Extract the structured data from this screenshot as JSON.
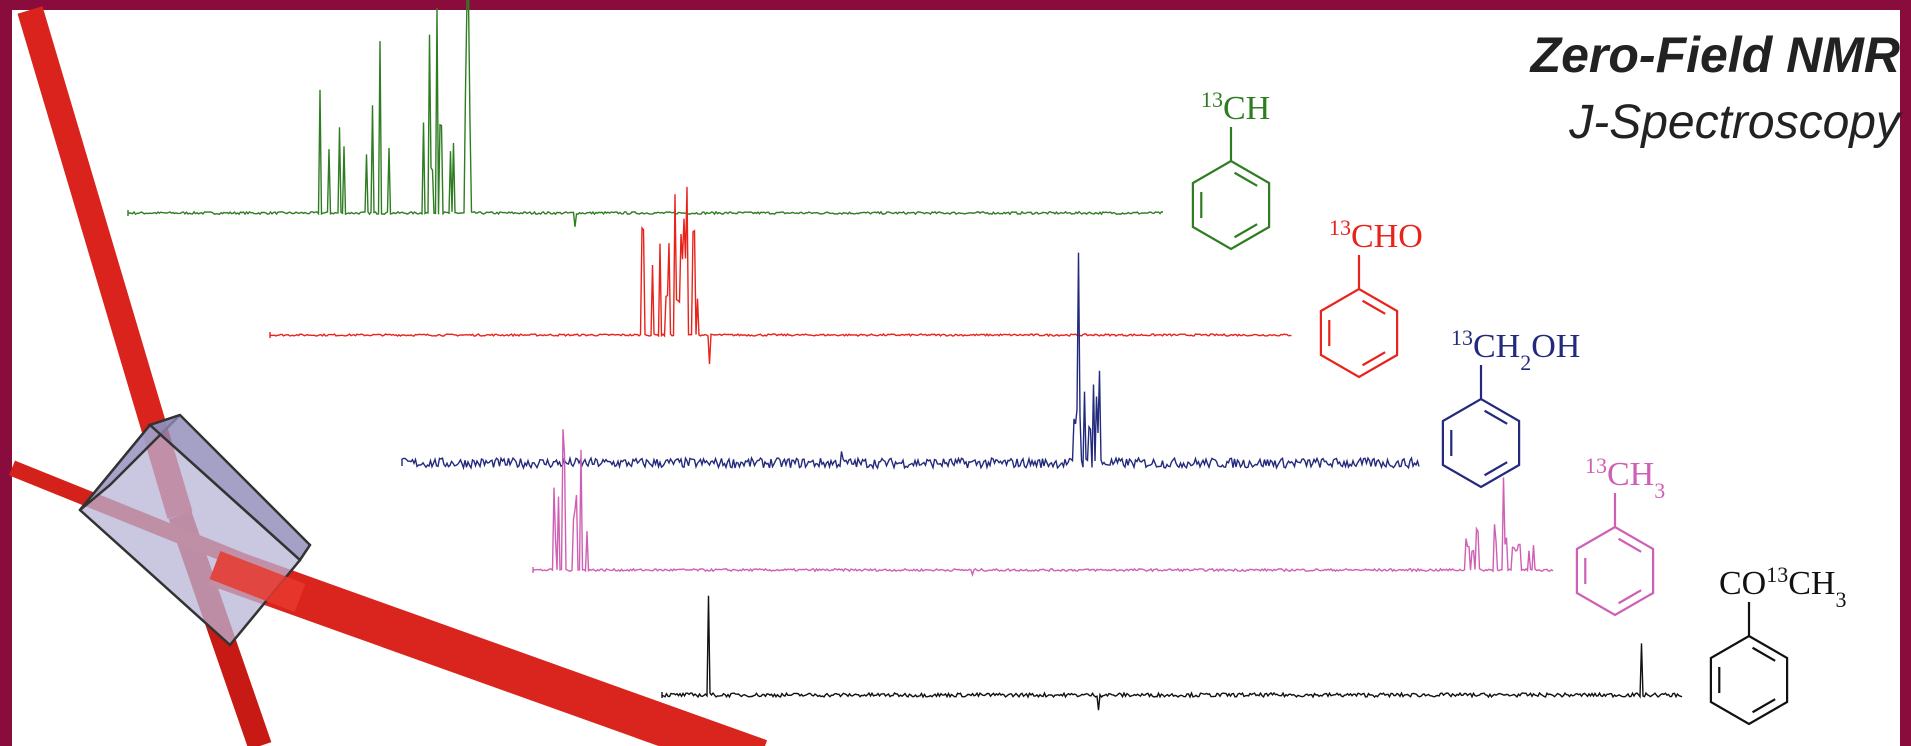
{
  "header": {
    "title": "Zero-Field NMR",
    "subtitle": "J-Spectroscopy"
  },
  "spectra": [
    {
      "color": "#2f7d22",
      "label": [
        {
          "text": "13",
          "style": "sup"
        },
        {
          "text": "CH"
        }
      ]
    },
    {
      "color": "#e8231b",
      "label": [
        {
          "text": "13",
          "style": "sup"
        },
        {
          "text": "CHO"
        }
      ]
    },
    {
      "color": "#232a7c",
      "label": [
        {
          "text": "13",
          "style": "sup"
        },
        {
          "text": "CH"
        },
        {
          "text": "2",
          "style": "sub"
        },
        {
          "text": "OH"
        }
      ]
    },
    {
      "color": "#cf5fb4",
      "label": [
        {
          "text": "13",
          "style": "sup"
        },
        {
          "text": "CH"
        },
        {
          "text": "3",
          "style": "sub"
        }
      ]
    },
    {
      "color": "#111111",
      "label": [
        {
          "text": "CO"
        },
        {
          "text": "13",
          "style": "sup"
        },
        {
          "text": "CH"
        },
        {
          "text": "3",
          "style": "sub"
        }
      ]
    }
  ]
}
